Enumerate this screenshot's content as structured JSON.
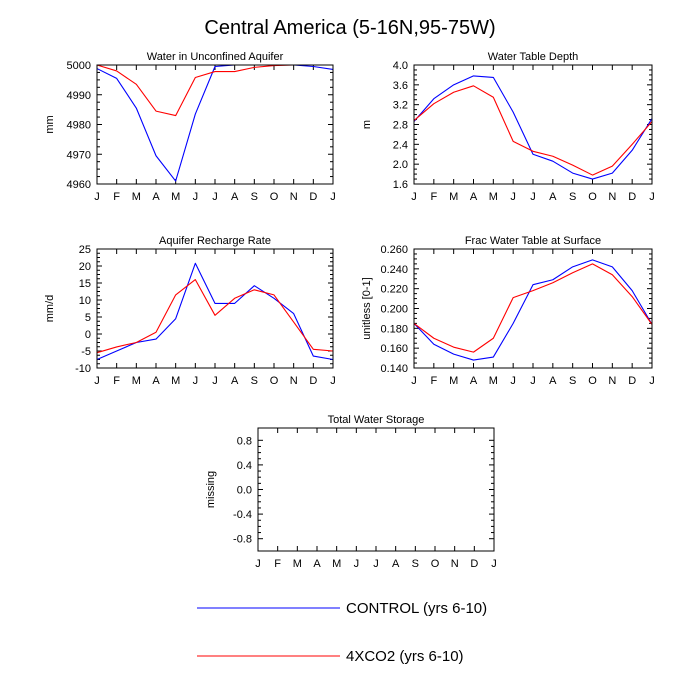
{
  "title": "Central America (5-16N,95-75W)",
  "months": [
    "J",
    "F",
    "M",
    "A",
    "M",
    "J",
    "J",
    "A",
    "S",
    "O",
    "N",
    "D",
    "J"
  ],
  "legend": [
    {
      "label": "CONTROL (yrs 6-10)",
      "color": "#0000ff"
    },
    {
      "label": "4XCO2 (yrs 6-10)",
      "color": "#ff0000"
    }
  ],
  "chart_data": [
    {
      "type": "line",
      "title": "Water in Unconfined Aquifer",
      "ylabel": "mm",
      "ylim": [
        4960,
        5000
      ],
      "yticks": [
        4960,
        4970,
        4980,
        4990,
        5000
      ],
      "ytick_labels": [
        "4960",
        "4970",
        "4980",
        "4990",
        "5000"
      ],
      "series": [
        {
          "name": "CONTROL (yrs 6-10)",
          "color": "#0000ff",
          "values": [
            4998.8,
            4995.5,
            4985.5,
            4969.5,
            4961,
            4983.5,
            4999.5,
            5000,
            5000,
            5000,
            5000,
            4999.5,
            4998.5
          ]
        },
        {
          "name": "4XCO2 (yrs 6-10)",
          "color": "#ff0000",
          "values": [
            5000,
            4998,
            4993.5,
            4984.5,
            4983,
            4995.8,
            4997.8,
            4997.8,
            4999.2,
            4999.8,
            5000,
            5000,
            5000
          ]
        }
      ]
    },
    {
      "type": "line",
      "title": "Water Table Depth",
      "ylabel": "m",
      "ylim": [
        1.6,
        4.0
      ],
      "yticks": [
        1.6,
        2.0,
        2.4,
        2.8,
        3.2,
        3.6,
        4.0
      ],
      "ytick_labels": [
        "1.6",
        "2.0",
        "2.4",
        "2.8",
        "3.2",
        "3.6",
        "4.0"
      ],
      "series": [
        {
          "name": "CONTROL (yrs 6-10)",
          "color": "#0000ff",
          "values": [
            2.86,
            3.32,
            3.6,
            3.78,
            3.75,
            3.05,
            2.2,
            2.06,
            1.82,
            1.7,
            1.82,
            2.28,
            2.92
          ]
        },
        {
          "name": "4XCO2 (yrs 6-10)",
          "color": "#ff0000",
          "values": [
            2.88,
            3.22,
            3.45,
            3.58,
            3.35,
            2.46,
            2.26,
            2.16,
            1.98,
            1.78,
            1.96,
            2.4,
            2.86
          ]
        }
      ]
    },
    {
      "type": "line",
      "title": "Aquifer Recharge Rate",
      "ylabel": "mm/d",
      "ylim": [
        -10,
        25
      ],
      "yticks": [
        -10,
        -5,
        0,
        5,
        10,
        15,
        20,
        25
      ],
      "ytick_labels": [
        "-10",
        "-5",
        "0",
        "5",
        "10",
        "15",
        "20",
        "25"
      ],
      "series": [
        {
          "name": "CONTROL (yrs 6-10)",
          "color": "#0000ff",
          "values": [
            -7.5,
            -5,
            -2.5,
            -1.5,
            4.5,
            20.8,
            9,
            9,
            14.2,
            10.5,
            6,
            -6.5,
            -7.5
          ]
        },
        {
          "name": "4XCO2 (yrs 6-10)",
          "color": "#ff0000",
          "values": [
            -5.5,
            -3.8,
            -2.5,
            0.5,
            11.5,
            16,
            5.5,
            10.5,
            13,
            11.5,
            3.5,
            -4.5,
            -5
          ]
        }
      ]
    },
    {
      "type": "line",
      "title": "Frac Water Table at Surface",
      "ylabel": "unitless [0-1]",
      "ylim": [
        0.14,
        0.26
      ],
      "yticks": [
        0.14,
        0.16,
        0.18,
        0.2,
        0.22,
        0.24,
        0.26
      ],
      "ytick_labels": [
        "0.140",
        "0.160",
        "0.180",
        "0.200",
        "0.220",
        "0.240",
        "0.260"
      ],
      "series": [
        {
          "name": "CONTROL (yrs 6-10)",
          "color": "#0000ff",
          "values": [
            0.185,
            0.164,
            0.154,
            0.148,
            0.151,
            0.185,
            0.224,
            0.229,
            0.242,
            0.249,
            0.242,
            0.218,
            0.184
          ]
        },
        {
          "name": "4XCO2 (yrs 6-10)",
          "color": "#ff0000",
          "values": [
            0.185,
            0.17,
            0.161,
            0.156,
            0.17,
            0.211,
            0.218,
            0.226,
            0.236,
            0.245,
            0.234,
            0.212,
            0.184
          ]
        }
      ]
    },
    {
      "type": "line",
      "title": "Total Water Storage",
      "ylabel": "missing",
      "ylim": [
        -1,
        1
      ],
      "yticks": [
        -0.8,
        -0.4,
        0,
        0.4,
        0.8
      ],
      "ytick_labels": [
        "-0.8",
        "-0.4",
        "0.0",
        "0.4",
        "0.8"
      ],
      "series": []
    }
  ]
}
